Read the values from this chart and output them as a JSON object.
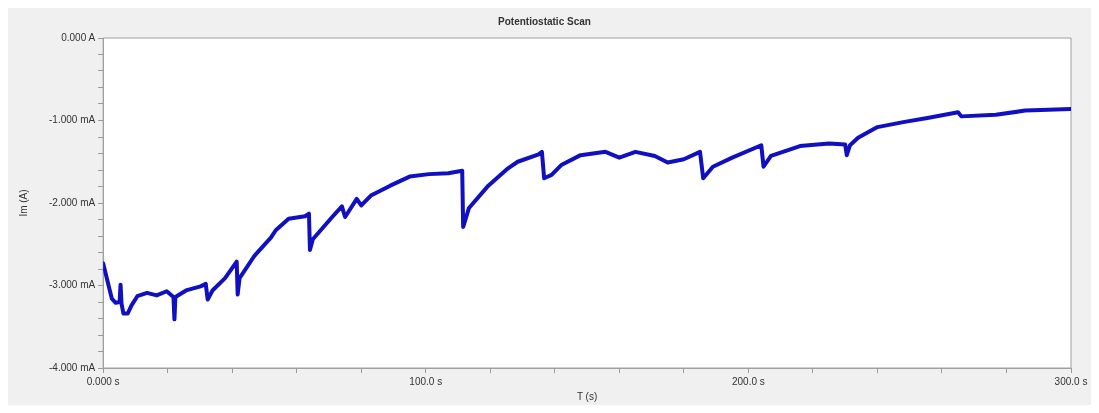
{
  "chart_data": {
    "type": "line",
    "title": "Potentiostatic Scan",
    "xlabel": "T (s)",
    "ylabel": "Im (A)",
    "xlim": [
      0,
      300
    ],
    "xticks": [
      {
        "value": 0,
        "label": "0.000 s"
      },
      {
        "value": 20,
        "label": null
      },
      {
        "value": 40,
        "label": null
      },
      {
        "value": 60,
        "label": null
      },
      {
        "value": 80,
        "label": null
      },
      {
        "value": 100,
        "label": "100.0 s"
      },
      {
        "value": 120,
        "label": null
      },
      {
        "value": 140,
        "label": null
      },
      {
        "value": 160,
        "label": null
      },
      {
        "value": 180,
        "label": null
      },
      {
        "value": 200,
        "label": "200.0 s"
      },
      {
        "value": 220,
        "label": null
      },
      {
        "value": 240,
        "label": null
      },
      {
        "value": 260,
        "label": null
      },
      {
        "value": 280,
        "label": null
      },
      {
        "value": 300,
        "label": "300.0 s"
      }
    ],
    "ylim": [
      -4,
      0
    ],
    "yticks": [
      {
        "value": -4,
        "label": "-4.000 mA"
      },
      {
        "value": -3.8,
        "label": null
      },
      {
        "value": -3.6,
        "label": null
      },
      {
        "value": -3.4,
        "label": null
      },
      {
        "value": -3.2,
        "label": null
      },
      {
        "value": -3,
        "label": "-3.000 mA"
      },
      {
        "value": -2.8,
        "label": null
      },
      {
        "value": -2.6,
        "label": null
      },
      {
        "value": -2.4,
        "label": null
      },
      {
        "value": -2.2,
        "label": null
      },
      {
        "value": -2,
        "label": "-2.000 mA"
      },
      {
        "value": -1.8,
        "label": null
      },
      {
        "value": -1.6,
        "label": null
      },
      {
        "value": -1.4,
        "label": null
      },
      {
        "value": -1.2,
        "label": null
      },
      {
        "value": -1,
        "label": "-1.000 mA"
      },
      {
        "value": -0.8,
        "label": null
      },
      {
        "value": -0.6,
        "label": null
      },
      {
        "value": -0.4,
        "label": null
      },
      {
        "value": -0.2,
        "label": null
      },
      {
        "value": 0,
        "label": "0.000 A"
      }
    ],
    "grid": false,
    "legend": false,
    "marker": "none",
    "line_style": "solid",
    "series": [
      {
        "color": "#1010c0",
        "x": [
          0,
          1.5,
          2.7,
          3.9,
          5.1,
          5.4,
          5.7,
          6.3,
          7.6,
          8.8,
          10.6,
          13.6,
          16.6,
          19.7,
          21.8,
          22.1,
          22.4,
          25.7,
          30.2,
          31.8,
          32.4,
          33.9,
          37.8,
          41.4,
          41.7,
          42.3,
          46.9,
          52,
          53.5,
          57.5,
          62.6,
          63.8,
          64.1,
          65,
          71,
          74,
          75,
          78.6,
          80,
          83,
          89,
          95,
          101,
          107,
          111.3,
          111.6,
          113.4,
          119.4,
          125.5,
          128.5,
          135,
          136,
          136.7,
          139,
          142,
          148,
          155.7,
          160,
          165,
          171,
          175,
          180,
          185,
          186,
          189,
          195,
          204,
          204.7,
          207,
          216,
          225,
          230,
          230.5,
          231.5,
          234,
          240,
          248,
          255.5,
          265,
          266,
          276.7,
          285.8,
          300
        ],
        "values": [
          -2.73,
          -2.97,
          -3.16,
          -3.21,
          -3.2,
          -2.99,
          -3.22,
          -3.34,
          -3.34,
          -3.24,
          -3.13,
          -3.09,
          -3.12,
          -3.07,
          -3.14,
          -3.41,
          -3.14,
          -3.06,
          -3.01,
          -2.98,
          -3.17,
          -3.06,
          -2.91,
          -2.71,
          -3.11,
          -2.91,
          -2.64,
          -2.42,
          -2.33,
          -2.19,
          -2.16,
          -2.13,
          -2.57,
          -2.44,
          -2.17,
          -2.04,
          -2.17,
          -1.95,
          -2.03,
          -1.91,
          -1.79,
          -1.68,
          -1.65,
          -1.64,
          -1.61,
          -2.29,
          -2.06,
          -1.79,
          -1.58,
          -1.5,
          -1.41,
          -1.38,
          -1.7,
          -1.66,
          -1.54,
          -1.42,
          -1.38,
          -1.45,
          -1.38,
          -1.43,
          -1.51,
          -1.47,
          -1.38,
          -1.7,
          -1.56,
          -1.45,
          -1.3,
          -1.56,
          -1.43,
          -1.31,
          -1.28,
          -1.29,
          -1.42,
          -1.3,
          -1.21,
          -1.08,
          -1.02,
          -0.97,
          -0.9,
          -0.95,
          -0.93,
          -0.88,
          -0.86
        ]
      }
    ]
  }
}
